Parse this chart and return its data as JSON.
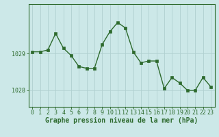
{
  "x": [
    0,
    1,
    2,
    3,
    4,
    5,
    6,
    7,
    8,
    9,
    10,
    11,
    12,
    13,
    14,
    15,
    16,
    17,
    18,
    19,
    20,
    21,
    22,
    23
  ],
  "y": [
    1029.05,
    1029.05,
    1029.1,
    1029.55,
    1029.15,
    1028.95,
    1028.65,
    1028.6,
    1028.6,
    1029.25,
    1029.6,
    1029.85,
    1029.7,
    1029.05,
    1028.75,
    1028.8,
    1028.8,
    1028.05,
    1028.35,
    1028.2,
    1028.0,
    1028.0,
    1028.35,
    1028.1
  ],
  "line_color": "#2d6a2d",
  "marker": "s",
  "marker_size": 2.5,
  "line_width": 1.0,
  "bg_color": "#cce8e8",
  "grid_color": "#b0d0d0",
  "xlabel": "Graphe pression niveau de la mer (hPa)",
  "xlabel_fontsize": 7.0,
  "ytick_labels": [
    "1028",
    "1029"
  ],
  "ytick_values": [
    1028.0,
    1029.0
  ],
  "ylim": [
    1027.55,
    1030.35
  ],
  "xlim": [
    -0.5,
    23.5
  ],
  "xtick_labels": [
    "0",
    "1",
    "2",
    "3",
    "4",
    "5",
    "6",
    "7",
    "8",
    "9",
    "10",
    "11",
    "12",
    "13",
    "14",
    "15",
    "16",
    "17",
    "18",
    "19",
    "20",
    "21",
    "22",
    "23"
  ],
  "tick_fontsize": 6.0
}
